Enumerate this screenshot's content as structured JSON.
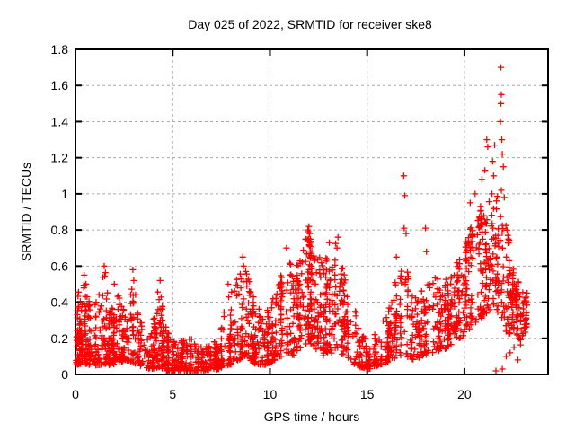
{
  "figure": {
    "background": "#ffffff"
  },
  "chart_data": {
    "type": "scatter",
    "title": "Day 025 of 2022, SRMTID for receiver ske8",
    "xlabel": "GPS time / hours",
    "ylabel": "SRMTID / TECUs",
    "xlim": [
      0,
      24.3
    ],
    "ylim": [
      0,
      1.8
    ],
    "xticks": [
      0,
      5,
      10,
      15,
      20
    ],
    "xtick_labels": [
      "0",
      "5",
      "10",
      "15",
      "20"
    ],
    "yticks": [
      0,
      0.2,
      0.4,
      0.6,
      0.8,
      1.0,
      1.2,
      1.4,
      1.6,
      1.8
    ],
    "ytick_labels": [
      "0",
      "0.2",
      "0.4",
      "0.6",
      "0.8",
      "1",
      "1.2",
      "1.4",
      "1.6",
      "1.8"
    ],
    "grid": true,
    "grid_style": "dashed",
    "legend": "none",
    "marker": "plus",
    "marker_color": "#ff0000",
    "grid_color": "#a8a8a8",
    "frame_color": "#000000",
    "text_color": "#000000",
    "seed": 20220125,
    "n_points": 2300,
    "envelope": [
      [
        0.0,
        0.05,
        0.5
      ],
      [
        0.3,
        0.06,
        0.42
      ],
      [
        0.5,
        0.06,
        0.55
      ],
      [
        0.8,
        0.05,
        0.35
      ],
      [
        1.2,
        0.05,
        0.45
      ],
      [
        1.5,
        0.06,
        0.6
      ],
      [
        1.8,
        0.05,
        0.35
      ],
      [
        2.2,
        0.06,
        0.45
      ],
      [
        2.6,
        0.08,
        0.35
      ],
      [
        3.0,
        0.06,
        0.58
      ],
      [
        3.4,
        0.04,
        0.28
      ],
      [
        3.9,
        0.03,
        0.22
      ],
      [
        4.3,
        0.04,
        0.52
      ],
      [
        4.7,
        0.02,
        0.24
      ],
      [
        5.2,
        0.02,
        0.18
      ],
      [
        6.0,
        0.02,
        0.2
      ],
      [
        6.8,
        0.02,
        0.16
      ],
      [
        7.4,
        0.03,
        0.22
      ],
      [
        7.9,
        0.05,
        0.5
      ],
      [
        8.4,
        0.08,
        0.55
      ],
      [
        8.7,
        0.1,
        0.62
      ],
      [
        9.2,
        0.06,
        0.42
      ],
      [
        9.7,
        0.05,
        0.32
      ],
      [
        10.1,
        0.07,
        0.45
      ],
      [
        10.6,
        0.1,
        0.6
      ],
      [
        10.9,
        0.12,
        0.68
      ],
      [
        11.2,
        0.1,
        0.55
      ],
      [
        11.6,
        0.15,
        0.68
      ],
      [
        12.0,
        0.18,
        0.8
      ],
      [
        12.4,
        0.12,
        0.72
      ],
      [
        12.7,
        0.1,
        0.6
      ],
      [
        13.1,
        0.12,
        0.7
      ],
      [
        13.5,
        0.1,
        0.74
      ],
      [
        14.0,
        0.08,
        0.45
      ],
      [
        14.6,
        0.04,
        0.3
      ],
      [
        15.1,
        0.03,
        0.16
      ],
      [
        15.6,
        0.05,
        0.28
      ],
      [
        16.1,
        0.07,
        0.38
      ],
      [
        16.6,
        0.1,
        0.58
      ],
      [
        17.0,
        0.1,
        0.62
      ],
      [
        17.4,
        0.08,
        0.42
      ],
      [
        17.9,
        0.1,
        0.5
      ],
      [
        18.4,
        0.12,
        0.56
      ],
      [
        19.0,
        0.14,
        0.52
      ],
      [
        19.5,
        0.18,
        0.6
      ],
      [
        20.0,
        0.22,
        0.72
      ],
      [
        20.5,
        0.28,
        0.88
      ],
      [
        21.0,
        0.32,
        0.96
      ],
      [
        21.5,
        0.38,
        1.02
      ],
      [
        21.9,
        0.3,
        0.98
      ],
      [
        22.2,
        0.22,
        0.8
      ],
      [
        22.6,
        0.24,
        0.58
      ],
      [
        22.9,
        0.14,
        0.48
      ],
      [
        23.25,
        0.28,
        0.45
      ]
    ],
    "density_segments": [
      [
        0.0,
        2.5,
        0.13
      ],
      [
        2.5,
        5.0,
        0.09
      ],
      [
        5.0,
        8.0,
        0.12
      ],
      [
        8.0,
        10.5,
        0.12
      ],
      [
        10.5,
        14.0,
        0.17
      ],
      [
        14.0,
        16.0,
        0.06
      ],
      [
        16.0,
        19.0,
        0.09
      ],
      [
        19.0,
        21.5,
        0.12
      ],
      [
        21.5,
        23.25,
        0.1
      ]
    ],
    "outliers": [
      [
        0.45,
        0.55
      ],
      [
        1.48,
        0.6
      ],
      [
        2.0,
        0.5
      ],
      [
        2.95,
        0.58
      ],
      [
        3.0,
        0.52
      ],
      [
        4.35,
        0.52
      ],
      [
        7.85,
        0.5
      ],
      [
        8.6,
        0.65
      ],
      [
        8.65,
        0.6
      ],
      [
        10.85,
        0.7
      ],
      [
        11.95,
        0.8
      ],
      [
        12.0,
        0.82
      ],
      [
        12.05,
        0.78
      ],
      [
        13.05,
        0.73
      ],
      [
        13.5,
        0.76
      ],
      [
        13.45,
        0.7
      ],
      [
        16.5,
        0.65
      ],
      [
        16.88,
        1.1
      ],
      [
        16.93,
        0.99
      ],
      [
        16.9,
        0.81
      ],
      [
        17.0,
        0.78
      ],
      [
        18.0,
        0.81
      ],
      [
        18.05,
        0.68
      ],
      [
        20.3,
        0.95
      ],
      [
        20.55,
        1.0
      ],
      [
        20.9,
        1.08
      ],
      [
        21.05,
        1.13
      ],
      [
        21.15,
        1.3
      ],
      [
        21.2,
        1.26
      ],
      [
        21.45,
        1.18
      ],
      [
        21.5,
        1.1
      ],
      [
        21.55,
        1.27
      ],
      [
        21.85,
        1.4
      ],
      [
        21.88,
        1.5
      ],
      [
        21.9,
        1.55
      ],
      [
        21.88,
        1.7
      ],
      [
        21.92,
        1.3
      ],
      [
        21.95,
        1.22
      ],
      [
        22.0,
        1.15
      ],
      [
        21.9,
        1.02
      ],
      [
        22.05,
        0.98
      ],
      [
        21.62,
        0.02
      ],
      [
        21.95,
        0.03
      ],
      [
        22.15,
        0.1
      ],
      [
        22.35,
        0.12
      ],
      [
        22.55,
        0.15
      ],
      [
        22.75,
        0.08
      ],
      [
        22.85,
        0.2
      ]
    ]
  }
}
